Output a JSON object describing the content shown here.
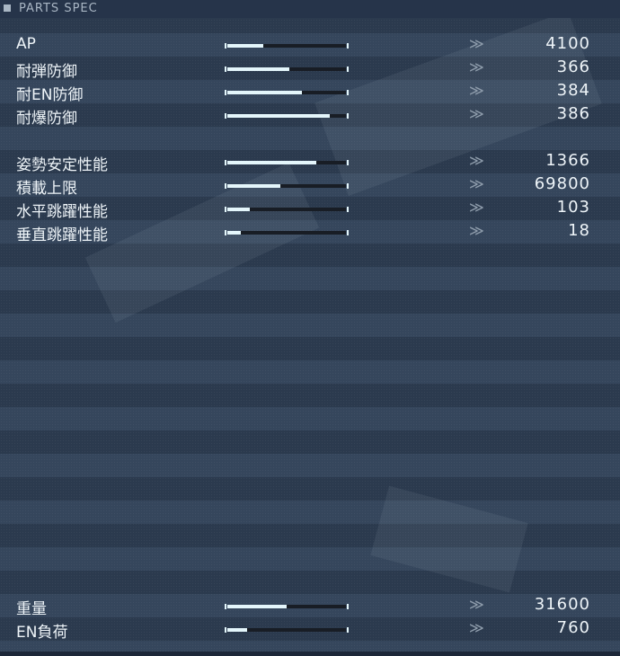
{
  "header": {
    "title": "PARTS SPEC"
  },
  "groups": [
    {
      "rows": [
        {
          "label": "AP",
          "value": "4100",
          "fill": 0.3
        },
        {
          "label": "耐弾防御",
          "value": "366",
          "fill": 0.52
        },
        {
          "label": "耐EN防御",
          "value": "384",
          "fill": 0.63
        },
        {
          "label": "耐爆防御",
          "value": "386",
          "fill": 0.86
        }
      ]
    },
    {
      "rows": [
        {
          "label": "姿勢安定性能",
          "value": "1366",
          "fill": 0.75
        },
        {
          "label": "積載上限",
          "value": "69800",
          "fill": 0.45
        },
        {
          "label": "水平跳躍性能",
          "value": "103",
          "fill": 0.19
        },
        {
          "label": "垂直跳躍性能",
          "value": "18",
          "fill": 0.11
        }
      ]
    },
    {
      "rows": [
        {
          "label": "重量",
          "value": "31600",
          "fill": 0.5
        },
        {
          "label": "EN負荷",
          "value": "760",
          "fill": 0.17
        }
      ]
    }
  ],
  "arrow_glyph": "≫",
  "colors": {
    "background": "#2c3b4f",
    "bar_fill": "#e4f6fb",
    "bar_track": "#181d25",
    "text": "#eef4f8"
  }
}
